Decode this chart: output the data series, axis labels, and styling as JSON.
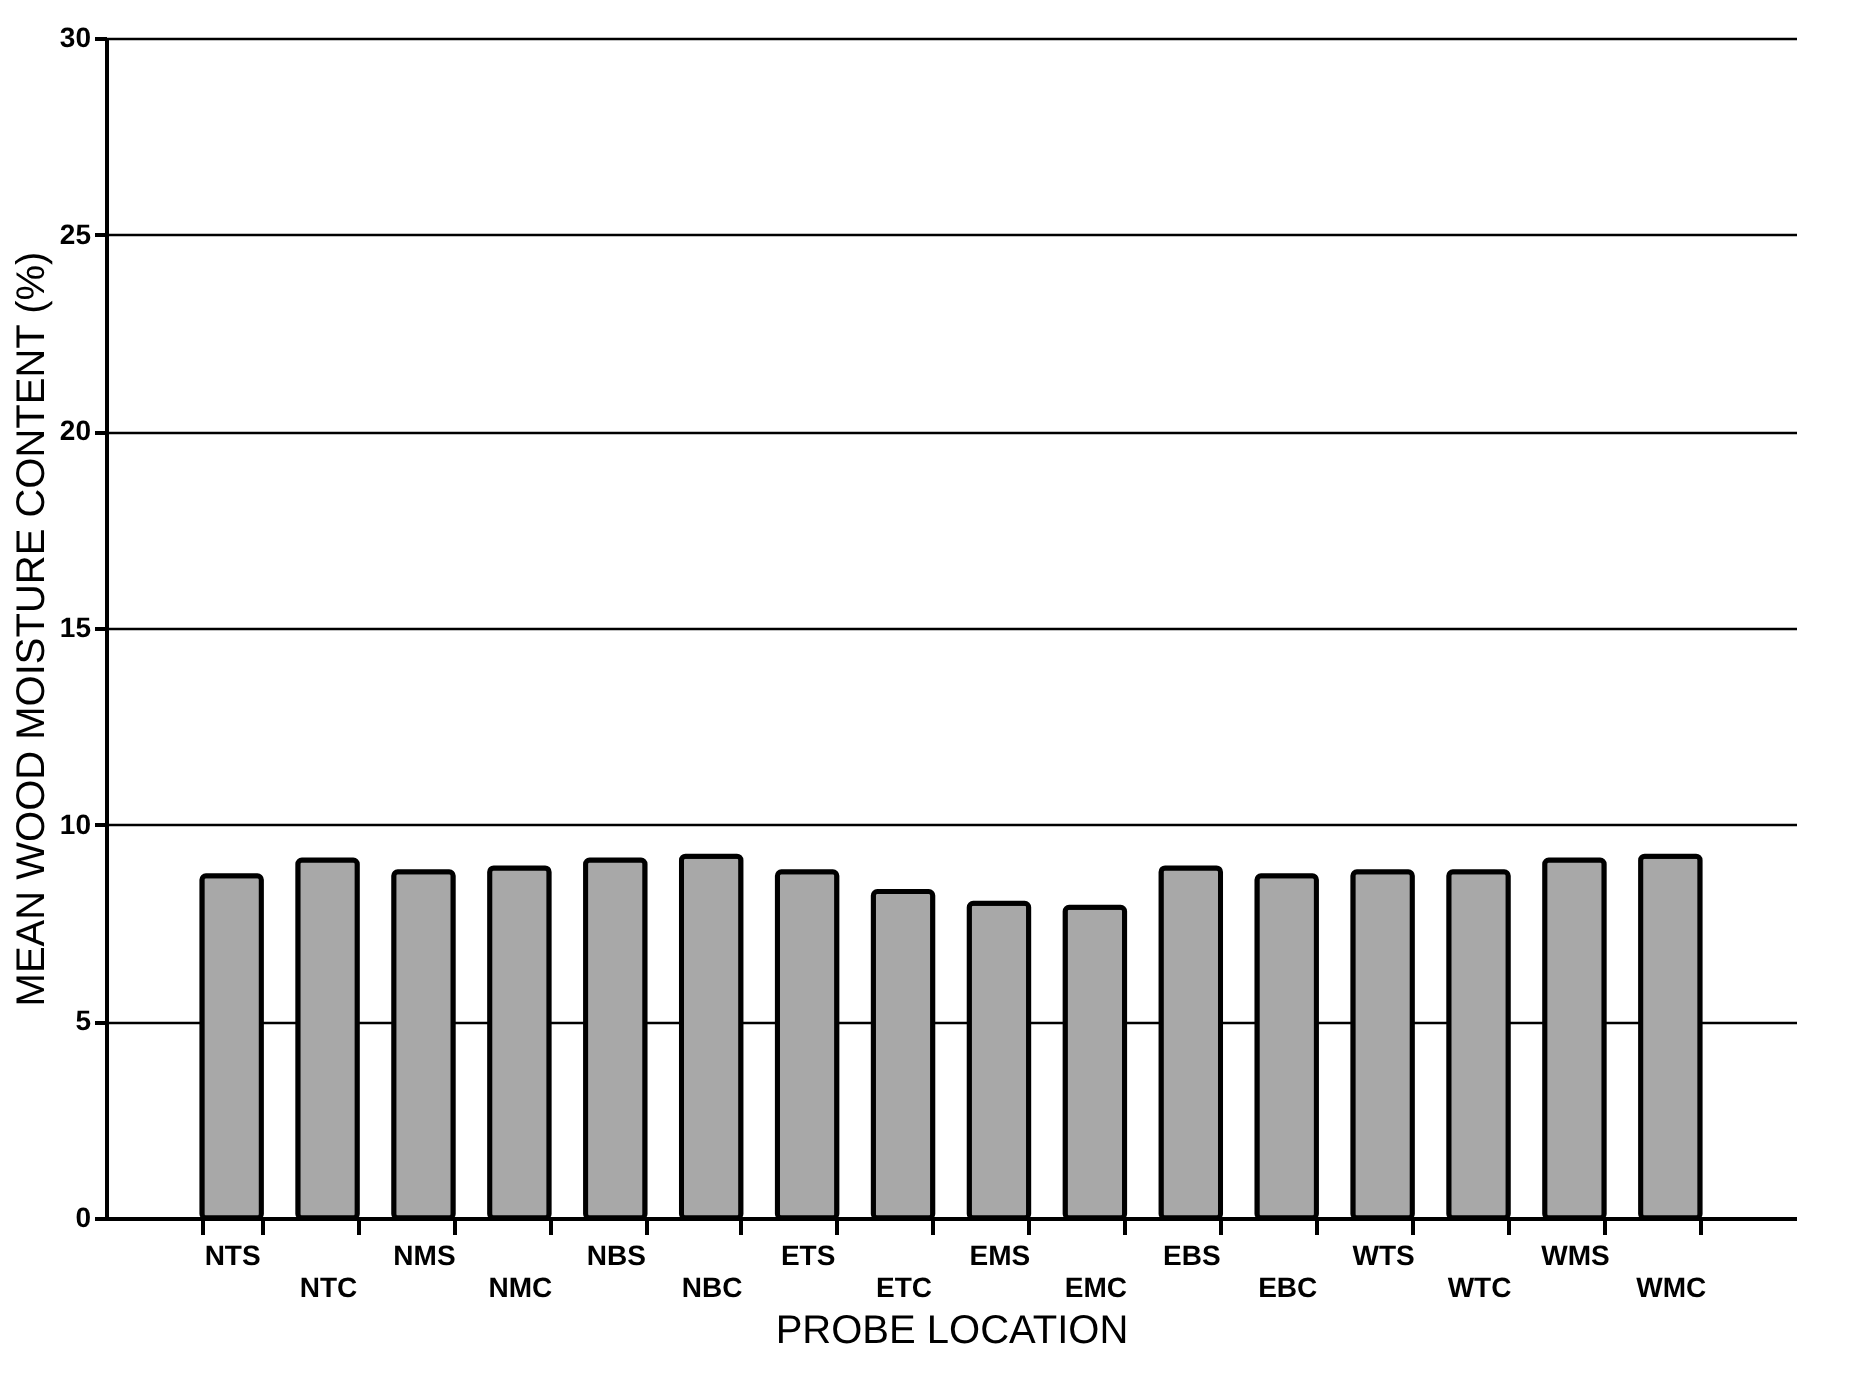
{
  "chart_data": {
    "type": "bar",
    "xlabel": "PROBE LOCATION",
    "ylabel": "MEAN WOOD MOISTURE CONTENT (%)",
    "categories": [
      "NTS",
      "NTC",
      "NMS",
      "NMC",
      "NBS",
      "NBC",
      "ETS",
      "ETC",
      "EMS",
      "EMC",
      "EBS",
      "EBC",
      "WTS",
      "WTC",
      "WMS",
      "WMC"
    ],
    "values": [
      8.7,
      9.1,
      8.8,
      8.9,
      9.1,
      9.2,
      8.8,
      8.3,
      8.0,
      7.9,
      8.9,
      8.7,
      8.8,
      8.8,
      9.1,
      9.2
    ],
    "color": "#a8a8a8",
    "ylim": [
      0,
      30
    ],
    "yticks": [
      0,
      5,
      10,
      15,
      20,
      25,
      30
    ],
    "grid": "y"
  }
}
